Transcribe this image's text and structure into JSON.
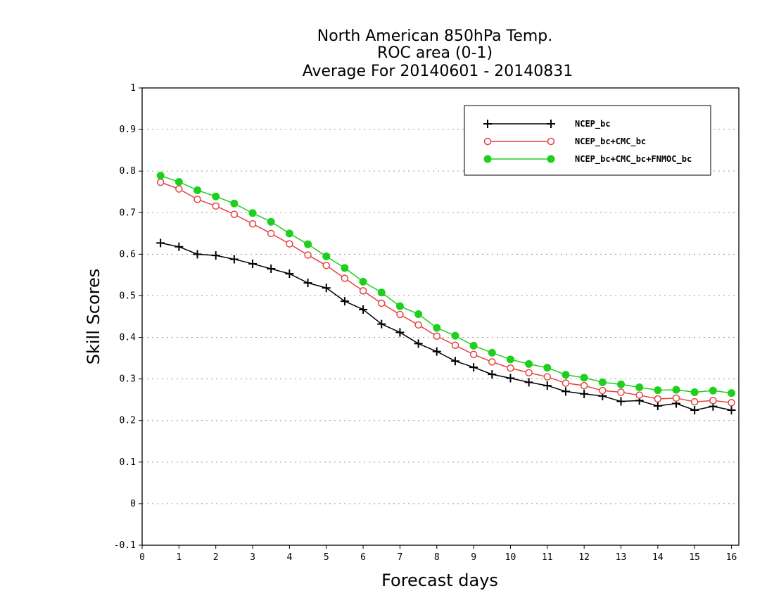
{
  "chart_data": {
    "type": "line",
    "title": [
      "North American 850hPa Temp.",
      "ROC area (0-1)",
      "Average For 20140601 - 20140831"
    ],
    "xlabel": "Forecast days",
    "ylabel": "Skill Scores",
    "xlim": [
      0,
      16.2
    ],
    "ylim": [
      -0.1,
      1
    ],
    "xticks": [
      "0",
      "1",
      "2",
      "3",
      "4",
      "5",
      "6",
      "7",
      "8",
      "9",
      "10",
      "11",
      "12",
      "13",
      "14",
      "15",
      "16"
    ],
    "yticks": [
      "-0.1",
      "0",
      "0.1",
      "0.2",
      "0.3",
      "0.4",
      "0.5",
      "0.6",
      "0.7",
      "0.8",
      "0.9",
      "1"
    ],
    "grid": true,
    "legend_position": "top-right",
    "x": [
      0.5,
      1,
      1.5,
      2,
      2.5,
      3,
      3.5,
      4,
      4.5,
      5,
      5.5,
      6,
      6.5,
      7,
      7.5,
      8,
      8.5,
      9,
      9.5,
      10,
      10.5,
      11,
      11.5,
      12,
      12.5,
      13,
      13.5,
      14,
      14.5,
      15,
      15.5,
      16
    ],
    "series": [
      {
        "name": "NCEP_bc",
        "color": "#000000",
        "marker": "plus",
        "values": [
          0.627,
          0.618,
          0.6,
          0.597,
          0.588,
          0.577,
          0.565,
          0.553,
          0.531,
          0.519,
          0.487,
          0.467,
          0.432,
          0.412,
          0.385,
          0.366,
          0.343,
          0.328,
          0.311,
          0.302,
          0.292,
          0.284,
          0.27,
          0.264,
          0.259,
          0.246,
          0.248,
          0.235,
          0.241,
          0.225,
          0.234,
          0.225
        ]
      },
      {
        "name": "NCEP_bc+CMC_bc",
        "color": "#e8413f",
        "marker": "open-circle",
        "values": [
          0.773,
          0.757,
          0.732,
          0.716,
          0.696,
          0.673,
          0.65,
          0.625,
          0.598,
          0.573,
          0.542,
          0.512,
          0.482,
          0.455,
          0.43,
          0.403,
          0.381,
          0.359,
          0.341,
          0.326,
          0.315,
          0.305,
          0.29,
          0.284,
          0.272,
          0.268,
          0.261,
          0.252,
          0.254,
          0.245,
          0.248,
          0.243
        ]
      },
      {
        "name": "NCEP_bc+CMC_bc+FNMOC_bc",
        "color": "#1ecf1e",
        "marker": "filled-circle",
        "values": [
          0.789,
          0.774,
          0.754,
          0.739,
          0.722,
          0.699,
          0.678,
          0.65,
          0.624,
          0.595,
          0.567,
          0.534,
          0.508,
          0.475,
          0.456,
          0.423,
          0.404,
          0.38,
          0.363,
          0.347,
          0.336,
          0.327,
          0.31,
          0.303,
          0.292,
          0.287,
          0.28,
          0.273,
          0.274,
          0.268,
          0.272,
          0.266
        ]
      }
    ]
  }
}
